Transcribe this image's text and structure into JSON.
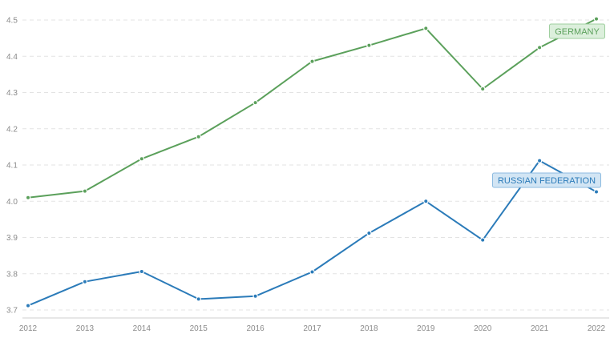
{
  "chart_data": {
    "type": "line",
    "x": [
      "2012",
      "2013",
      "2014",
      "2015",
      "2016",
      "2017",
      "2018",
      "2019",
      "2020",
      "2021",
      "2022"
    ],
    "ylim": [
      3.7,
      4.5
    ],
    "y_ticks": [
      "3.7",
      "3.8",
      "3.9",
      "4.0",
      "4.1",
      "4.2",
      "4.3",
      "4.4",
      "4.5"
    ],
    "grid": true,
    "legend": "inline labels near series ends",
    "series": [
      {
        "name": "GERMANY",
        "color": "#5ba05b",
        "label_bg": "#dcefdc",
        "label_border": "#9fcf9f",
        "values": [
          4.01,
          4.028,
          4.117,
          4.178,
          4.272,
          4.386,
          4.43,
          4.477,
          4.31,
          4.424,
          4.503
        ]
      },
      {
        "name": "RUSSIAN FEDERATION",
        "color": "#2b7bb9",
        "label_bg": "#d2e5f4",
        "label_border": "#8dbbe0",
        "values": [
          3.712,
          3.778,
          3.806,
          3.73,
          3.738,
          3.805,
          3.912,
          4.0,
          3.893,
          4.112,
          4.026
        ]
      }
    ]
  }
}
